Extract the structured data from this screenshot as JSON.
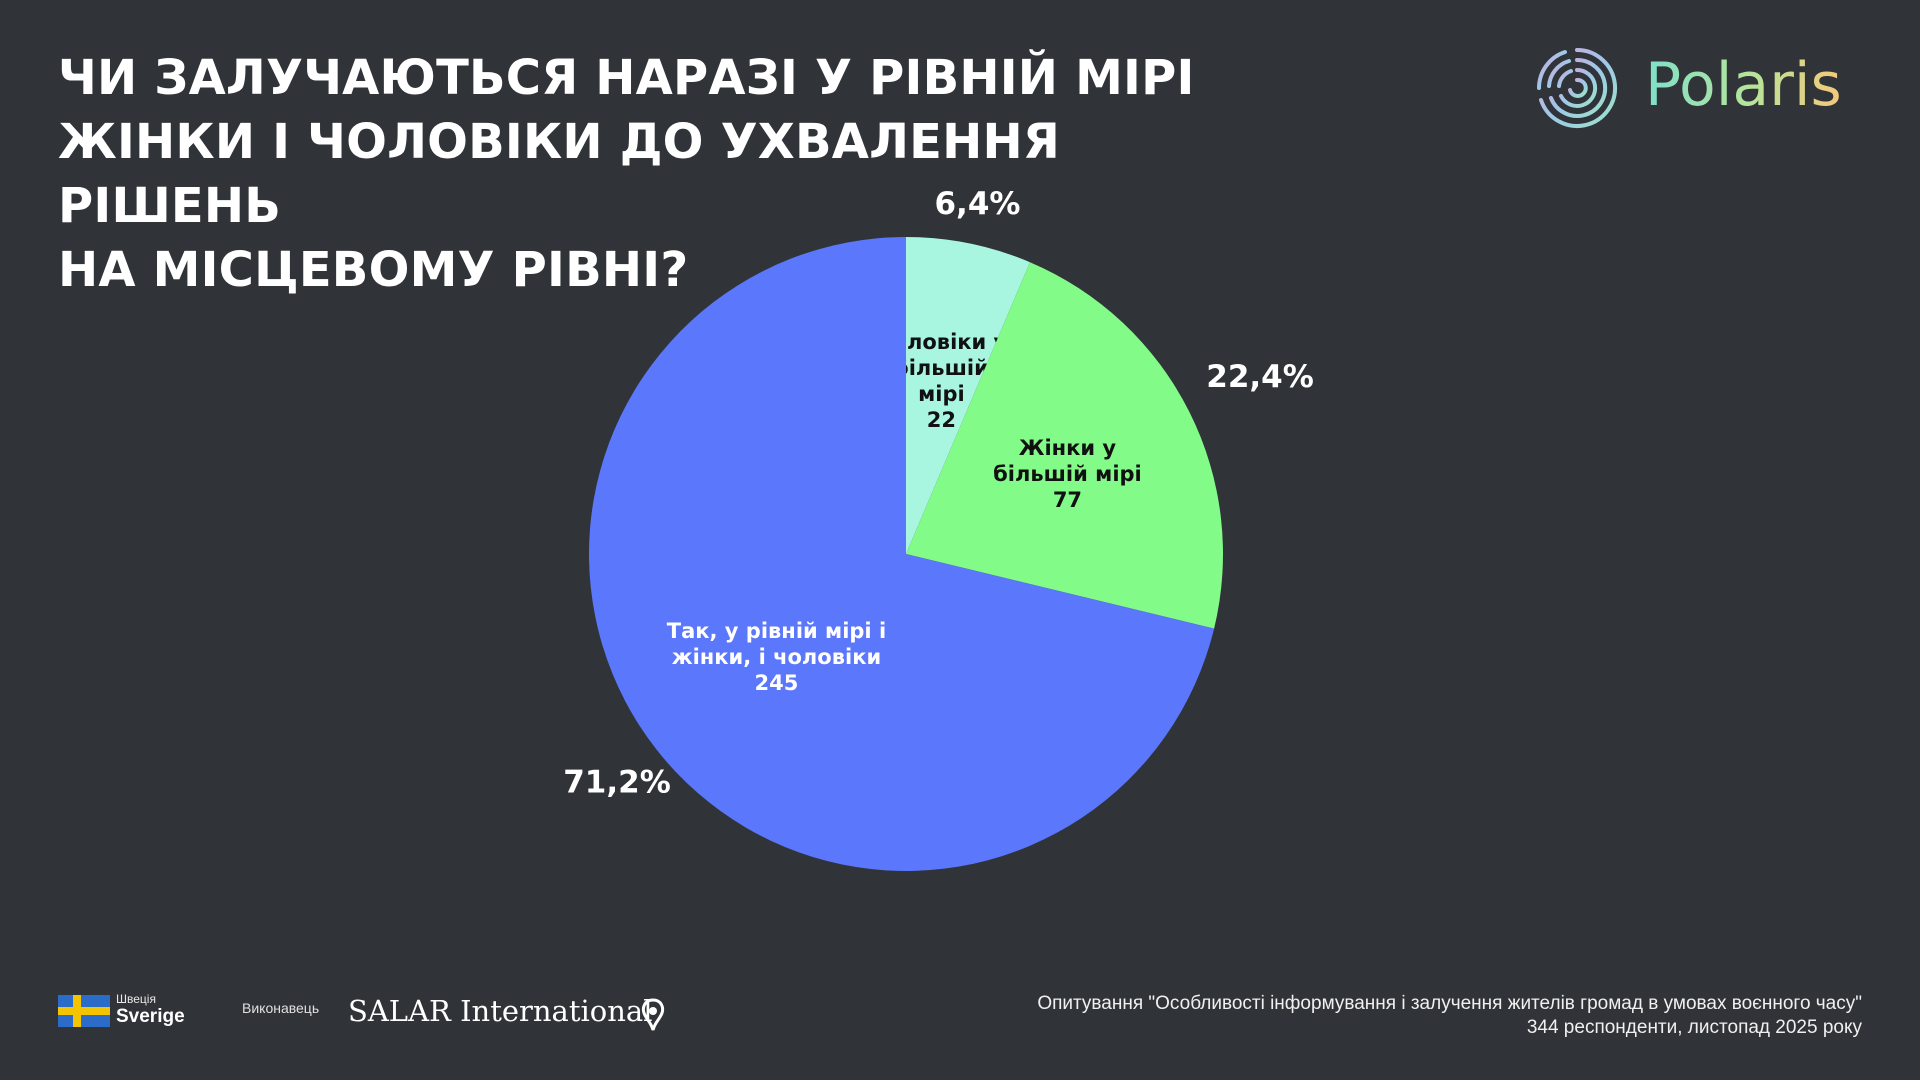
{
  "title": {
    "line1": "ЧИ ЗАЛУЧАЮТЬСЯ НАРАЗІ У РІВНІЙ МІРІ",
    "line2": "ЖІНКИ І ЧОЛОВІКИ ДО УХВАЛЕННЯ РІШЕНЬ",
    "line3": "НА МІСЦЕВОМУ РІВНІ?"
  },
  "logo": {
    "name": "Polaris",
    "icon": "polaris-rings-icon"
  },
  "chart_data": {
    "type": "pie",
    "start_angle_deg": 0,
    "direction": "clockwise",
    "slices": [
      {
        "label_lines": [
          "Чоловіки у",
          "більшій",
          "мірі"
        ],
        "count": "22",
        "value": 22,
        "percent": "6,4%",
        "color": "#a8f5e0",
        "label_color": "#111111"
      },
      {
        "label_lines": [
          "Жінки у",
          "більшій мірі"
        ],
        "count": "77",
        "value": 77,
        "percent": "22,4%",
        "color": "#82fb88",
        "label_color": "#111111"
      },
      {
        "label_lines": [
          "Так, у рівній мірі і",
          "жінки, і чоловіки"
        ],
        "count": "245",
        "value": 245,
        "percent": "71,2%",
        "color": "#5b77fb",
        "label_color": "#ffffff"
      }
    ]
  },
  "footer": {
    "sweden_small": "Швеція",
    "sweden_big": "Sverige",
    "executor_label": "Виконавець",
    "salar_name": "SALAR International",
    "survey_line1": "Опитування \"Особливості інформування і залучення жителів громад в умовах воєнного часу\"",
    "survey_line2": "344 респонденти, листопад 2025 року"
  }
}
